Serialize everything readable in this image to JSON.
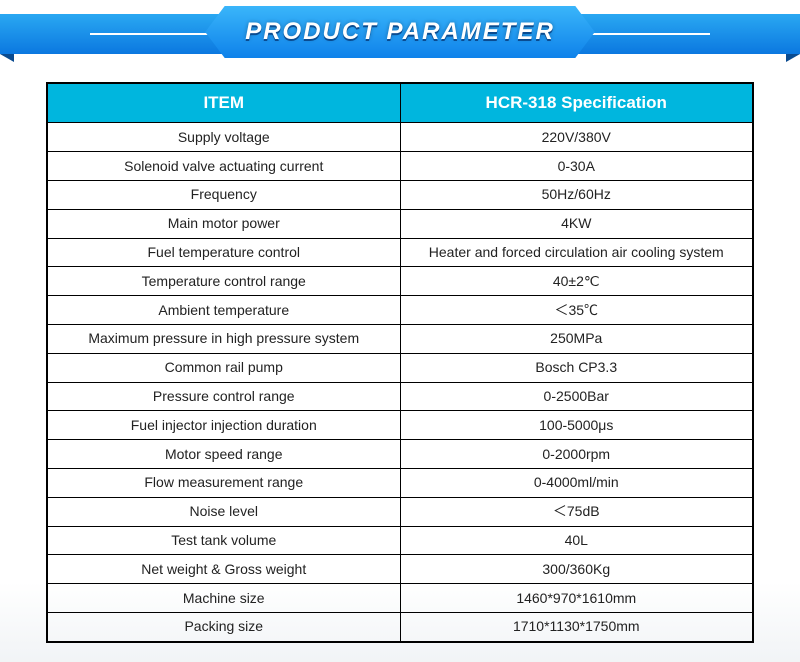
{
  "banner": {
    "title": "PRODUCT PARAMETER",
    "bg_gradient_top": "#2aa8f2",
    "bg_gradient_bottom": "#0b78e0",
    "center_gradient_top": "#3ab6fa",
    "center_gradient_bottom": "#0e82ea",
    "fold_color": "#0a4b90",
    "line_color": "#ffffff",
    "title_color": "#ffffff",
    "title_fontsize_pt": 18
  },
  "table": {
    "header_bg": "#00b6de",
    "header_text_color": "#ffffff",
    "border_color": "#000000",
    "cell_text_color": "#222222",
    "cell_fontsize_pt": 10.5,
    "header_fontsize_pt": 13,
    "columns": {
      "item": "ITEM",
      "spec": "HCR-318  Specification"
    },
    "rows": [
      {
        "item": "Supply voltage",
        "spec": "220V/380V"
      },
      {
        "item": "Solenoid valve actuating current",
        "spec": "0-30A"
      },
      {
        "item": "Frequency",
        "spec": "50Hz/60Hz"
      },
      {
        "item": "Main motor power",
        "spec": "4KW"
      },
      {
        "item": "Fuel temperature control",
        "spec": "Heater and forced circulation air cooling system"
      },
      {
        "item": "Temperature control range",
        "spec": "40±2℃"
      },
      {
        "item": "Ambient temperature",
        "spec": "＜35℃"
      },
      {
        "item": "Maximum pressure in high pressure system",
        "spec": "250MPa"
      },
      {
        "item": "Common rail pump",
        "spec": "Bosch CP3.3"
      },
      {
        "item": "Pressure control range",
        "spec": "0-2500Bar"
      },
      {
        "item": "Fuel injector injection duration",
        "spec": "100-5000μs"
      },
      {
        "item": "Motor speed range",
        "spec": "0-2000rpm"
      },
      {
        "item": "Flow measurement range",
        "spec": "0-4000ml/min"
      },
      {
        "item": "Noise level",
        "spec": "＜75dB"
      },
      {
        "item": "Test tank volume",
        "spec": "40L"
      },
      {
        "item": "Net weight & Gross weight",
        "spec": "300/360Kg"
      },
      {
        "item": "Machine size",
        "spec": "1460*970*1610mm"
      },
      {
        "item": "Packing size",
        "spec": "1710*1130*1750mm"
      }
    ]
  }
}
